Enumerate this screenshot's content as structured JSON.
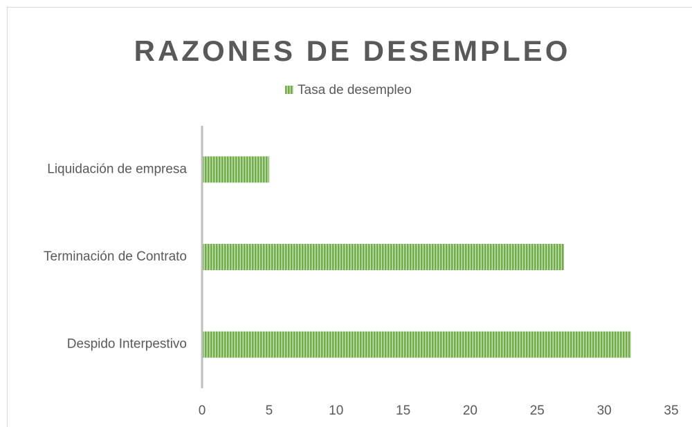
{
  "chart_data": {
    "type": "bar",
    "orientation": "horizontal",
    "title": "RAZONES DE DESEMPLEO",
    "categories": [
      "Despido Interpestivo",
      "Terminación de Contrato",
      "Liquidación de empresa"
    ],
    "series": [
      {
        "name": "Tasa de desempleo",
        "color": "#70ad47",
        "values": [
          32,
          27,
          5
        ]
      }
    ],
    "xlim": [
      0,
      35
    ],
    "xticks": [
      0,
      5,
      10,
      15,
      20,
      25,
      30,
      35
    ],
    "grid": false,
    "legend": "top"
  }
}
